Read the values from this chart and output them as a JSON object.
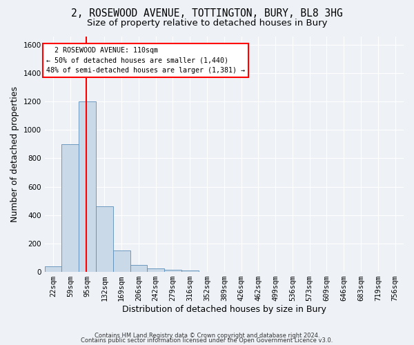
{
  "title_line1": "2, ROSEWOOD AVENUE, TOTTINGTON, BURY, BL8 3HG",
  "title_line2": "Size of property relative to detached houses in Bury",
  "xlabel": "Distribution of detached houses by size in Bury",
  "ylabel": "Number of detached properties",
  "footer_line1": "Contains HM Land Registry data © Crown copyright and database right 2024.",
  "footer_line2": "Contains public sector information licensed under the Open Government Licence v3.0.",
  "bin_labels": [
    "22sqm",
    "59sqm",
    "95sqm",
    "132sqm",
    "169sqm",
    "206sqm",
    "242sqm",
    "279sqm",
    "316sqm",
    "352sqm",
    "389sqm",
    "426sqm",
    "462sqm",
    "499sqm",
    "536sqm",
    "573sqm",
    "609sqm",
    "646sqm",
    "683sqm",
    "719sqm",
    "756sqm"
  ],
  "bar_values": [
    40,
    900,
    1200,
    460,
    150,
    50,
    25,
    15,
    10,
    0,
    0,
    0,
    0,
    0,
    0,
    0,
    0,
    0,
    0,
    0,
    0
  ],
  "bar_color": "#c9d9e8",
  "bar_edge_color": "#5b8db8",
  "vline_x": 2.42,
  "annotation_text": "  2 ROSEWOOD AVENUE: 110sqm  \n← 50% of detached houses are smaller (1,440)\n48% of semi-detached houses are larger (1,381) →",
  "annotation_box_color": "white",
  "annotation_box_edge_color": "red",
  "vline_color": "red",
  "ylim": [
    0,
    1660
  ],
  "yticks": [
    0,
    200,
    400,
    600,
    800,
    1000,
    1200,
    1400,
    1600
  ],
  "background_color": "#eef2f7",
  "grid_color": "white",
  "title_fontsize": 10.5,
  "subtitle_fontsize": 9.5,
  "axis_label_fontsize": 9,
  "tick_fontsize": 7.5,
  "footer_fontsize": 6.0
}
